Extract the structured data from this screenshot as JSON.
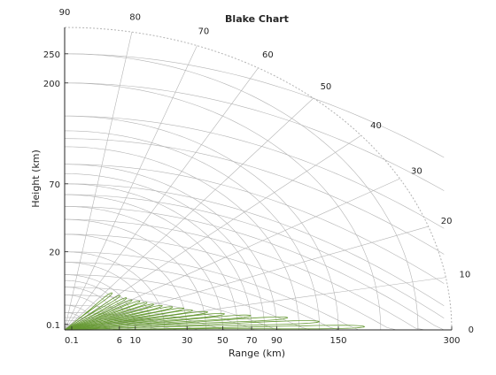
{
  "chart_data": {
    "type": "line",
    "title": "Blake Chart",
    "xlabel": "Range (km)",
    "ylabel": "Height (km)",
    "x_scale": "Blake",
    "y_scale": "Blake",
    "x_ticks": [
      0.1,
      6,
      10,
      30,
      50,
      70,
      90,
      150,
      300
    ],
    "y_ticks": [
      0.1,
      20,
      70,
      200,
      250
    ],
    "angle_ticks_deg": [
      0,
      10,
      20,
      30,
      40,
      50,
      60,
      70,
      80,
      90
    ],
    "max_range_km": 300,
    "grid": true,
    "grid_color": "#b4b4b4",
    "series_color": "#669933",
    "series": [
      {
        "values_description": "coverage lobe boundary (elevation angle deg, range km)",
        "lobes": [
          {
            "angle_deg": 0.8,
            "peak_range_km": 180,
            "width_deg": 0.8
          },
          {
            "angle_deg": 2.4,
            "peak_range_km": 130,
            "width_deg": 0.9
          },
          {
            "angle_deg": 4.0,
            "peak_range_km": 100,
            "width_deg": 1.0
          },
          {
            "angle_deg": 5.6,
            "peak_range_km": 70,
            "width_deg": 1.1
          },
          {
            "angle_deg": 7.3,
            "peak_range_km": 52,
            "width_deg": 1.2
          },
          {
            "angle_deg": 9.1,
            "peak_range_km": 42,
            "width_deg": 1.3
          },
          {
            "angle_deg": 11.0,
            "peak_range_km": 34,
            "width_deg": 1.4
          },
          {
            "angle_deg": 13.0,
            "peak_range_km": 30,
            "width_deg": 1.5
          },
          {
            "angle_deg": 15.2,
            "peak_range_km": 25,
            "width_deg": 1.6
          },
          {
            "angle_deg": 17.6,
            "peak_range_km": 21,
            "width_deg": 1.7
          },
          {
            "angle_deg": 20.2,
            "peak_range_km": 18,
            "width_deg": 1.8
          },
          {
            "angle_deg": 23.0,
            "peak_range_km": 16,
            "width_deg": 1.9
          },
          {
            "angle_deg": 26.0,
            "peak_range_km": 14,
            "width_deg": 2.0
          },
          {
            "angle_deg": 29.5,
            "peak_range_km": 12,
            "width_deg": 2.0
          },
          {
            "angle_deg": 33.5,
            "peak_range_km": 11,
            "width_deg": 2.1
          },
          {
            "angle_deg": 38.5,
            "peak_range_km": 10,
            "width_deg": 2.2
          },
          {
            "angle_deg": 45.0,
            "peak_range_km": 9,
            "width_deg": 2.3
          }
        ]
      }
    ]
  }
}
